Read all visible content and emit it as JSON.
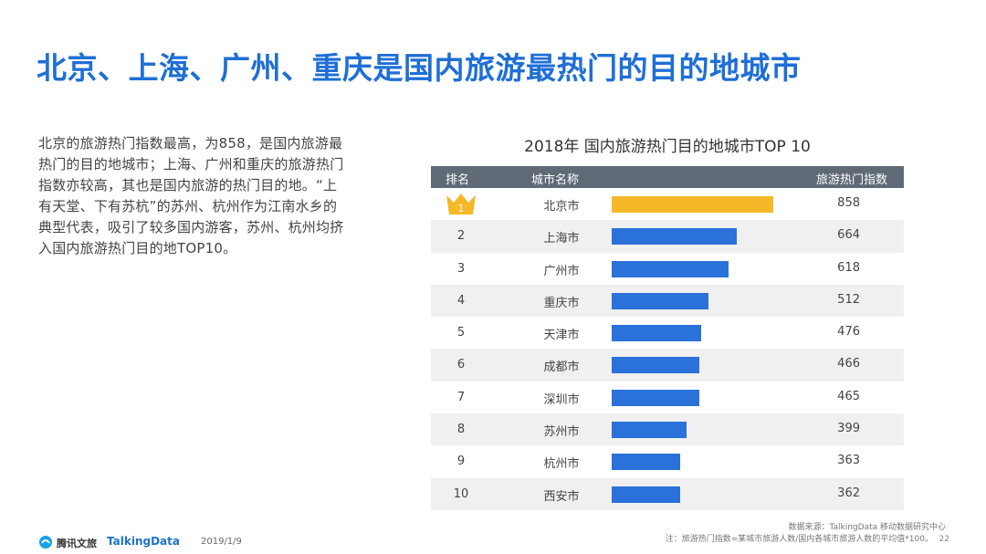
{
  "slide_title": "北京、上海、广州、重庆是国内旅游最热门的目的地城市",
  "description": "北京的旅游热门指数最高，为858，是国内旅游最热门的目的地城市；上海、广州和重庆的旅游热门指数亦较高，其也是国内旅游的热门目的地。“上有天堂、下有苏杭”的苏州、杭州作为江南水乡的典型代表，吸引了较多国内游客，苏州、杭州均挤入国内旅游热门目的地TOP10。",
  "chart_data": {
    "type": "bar",
    "orientation": "horizontal",
    "title": "2018年 国内旅游热门目的地城市TOP 10",
    "columns": [
      "排名",
      "城市名称",
      "旅游热门指数"
    ],
    "ranks": [
      "1",
      "2",
      "3",
      "4",
      "5",
      "6",
      "7",
      "8",
      "9",
      "10"
    ],
    "categories": [
      "北京市",
      "上海市",
      "广州市",
      "重庆市",
      "天津市",
      "成都市",
      "深圳市",
      "苏州市",
      "杭州市",
      "西安市"
    ],
    "values": [
      858,
      664,
      618,
      512,
      476,
      466,
      465,
      399,
      363,
      362
    ],
    "xlim": [
      0,
      1000
    ],
    "colors": {
      "top": "#f4b829",
      "default": "#2a71d9",
      "header": "#5f6a76"
    }
  },
  "source": "数据来源：TalkingData 移动数据研究中心",
  "note": "注：旅游热门指数=某城市旅游人数/国内各城市旅游人数的平均值*100。",
  "page_number": "22",
  "footer": {
    "brand1": "腾讯文旅",
    "brand2": "TalkingData",
    "date": "2019/1/9"
  }
}
